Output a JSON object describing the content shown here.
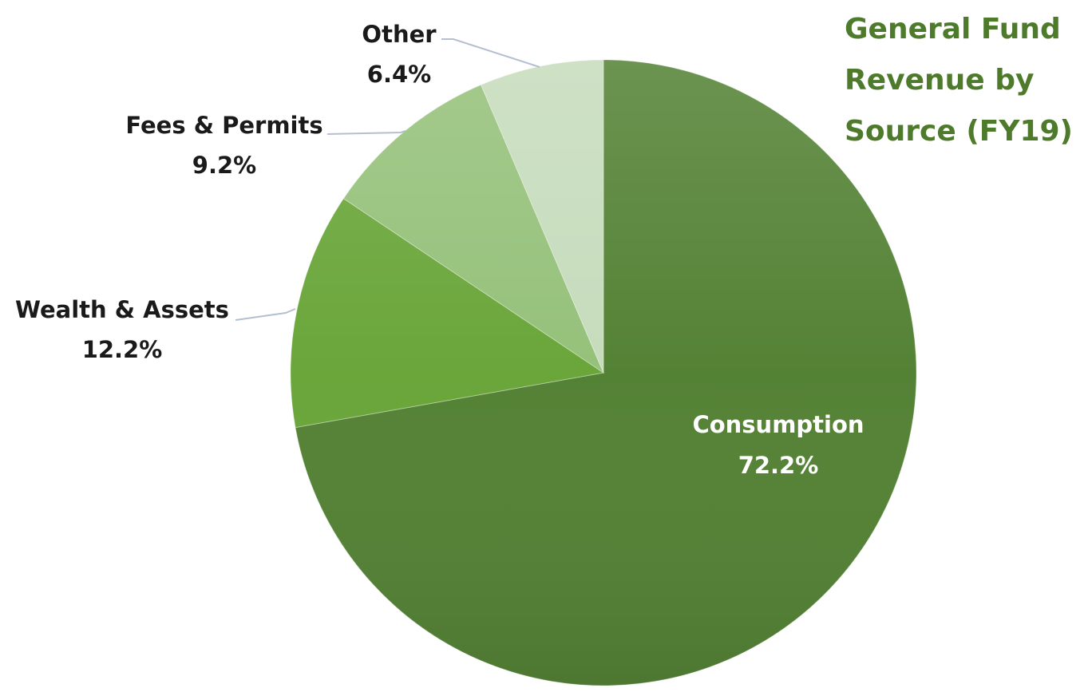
{
  "chart_data": {
    "type": "pie",
    "title": [
      "General Fund",
      "Revenue by",
      "Source (FY19)"
    ],
    "categories": [
      "Consumption",
      "Wealth & Assets",
      "Fees & Permits",
      "Other"
    ],
    "values": [
      72.2,
      12.2,
      9.2,
      6.4
    ],
    "data_labels": [
      "72.2%",
      "12.2%",
      "9.2%",
      "6.4%"
    ],
    "start_angle_deg": 0,
    "direction": "clockwise",
    "colors": {
      "slices": [
        "#548235",
        "#6aa63a",
        "#95c17a",
        "#c6dcbc"
      ],
      "title": "#4e7a2c",
      "inside_label": "#ffffff",
      "outside_label": "#1a1a1a",
      "leader_line": "#b4c0d0"
    }
  }
}
